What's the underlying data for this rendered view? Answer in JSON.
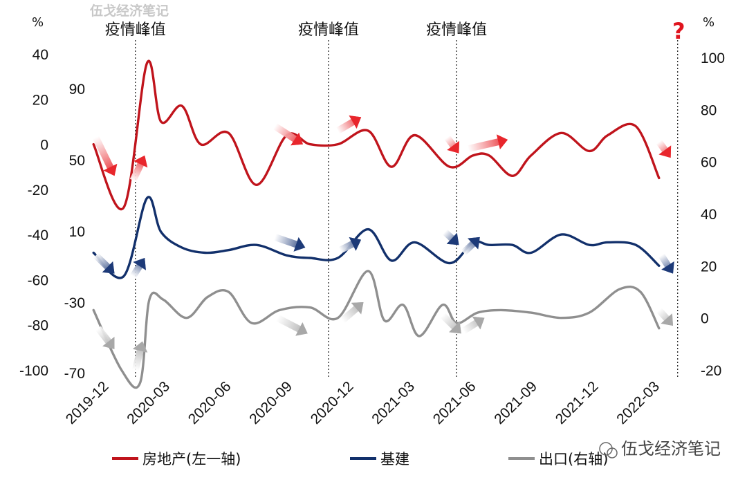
{
  "chart_data": {
    "type": "line",
    "watermark_top": "伍戈经济笔记",
    "watermark_bottom": "伍戈经济笔记",
    "question_mark": "?",
    "left_unit": "%",
    "right_unit": "%",
    "peak_label": "疫情峰值",
    "y_left_ticks": [
      "40",
      "20",
      "0",
      "-20",
      "-40",
      "-60",
      "-80",
      "-100"
    ],
    "y_inner_ticks": [
      "90",
      "50",
      "10",
      "-30",
      "-70"
    ],
    "y_right_ticks": [
      "100",
      "80",
      "60",
      "40",
      "20",
      "0",
      "-20"
    ],
    "x_ticks": [
      "2019-12",
      "2020-03",
      "2020-06",
      "2020-09",
      "2020-12",
      "2021-03",
      "2021-06",
      "2021-09",
      "2021-12",
      "2022-03"
    ],
    "colors": {
      "real_estate": "#c0141c",
      "infrastructure": "#12306b",
      "exports": "#8f8f8f",
      "arrow_red": "#e8262c",
      "arrow_navy": "#1d3a78",
      "arrow_gray": "#a8a8a8"
    },
    "series": [
      {
        "key": "real_estate",
        "name": "房地产(左一轴)",
        "axis": "left",
        "x": [
          2019.92,
          2020.05,
          2020.15,
          2020.21,
          2020.3,
          2020.38,
          2020.5,
          2020.62,
          2020.75,
          2020.85,
          2020.97,
          2021.1,
          2021.2,
          2021.3,
          2021.45,
          2021.55,
          2021.62,
          2021.72,
          2021.8,
          2021.93,
          2022.05,
          2022.13,
          2022.25,
          2022.35
        ],
        "values": [
          0,
          -28,
          36,
          10,
          17,
          0,
          5,
          -18,
          4,
          0,
          0,
          6,
          -10,
          4,
          -10,
          -5,
          -5,
          -14,
          -5,
          5,
          -3,
          4,
          8,
          -15
        ]
      },
      {
        "key": "infrastructure",
        "name": "基建",
        "axis": "right",
        "x": [
          2019.92,
          2020.05,
          2020.15,
          2020.21,
          2020.3,
          2020.4,
          2020.5,
          2020.62,
          2020.75,
          2020.85,
          2020.97,
          2021.1,
          2021.2,
          2021.3,
          2021.45,
          2021.55,
          2021.62,
          2021.72,
          2021.8,
          2021.93,
          2022.05,
          2022.13,
          2022.25,
          2022.35
        ],
        "values": [
          25,
          16,
          46,
          33,
          27,
          25,
          26,
          28,
          24,
          23,
          23,
          34,
          22,
          29,
          21,
          29,
          28,
          28,
          25,
          32,
          28,
          29,
          28,
          20
        ]
      },
      {
        "key": "exports",
        "name": "出口(右轴)",
        "axis": "right",
        "x": [
          2019.92,
          2020.04,
          2020.12,
          2020.16,
          2020.22,
          2020.32,
          2020.41,
          2020.5,
          2020.6,
          2020.72,
          2020.85,
          2020.97,
          2021.1,
          2021.17,
          2021.25,
          2021.32,
          2021.42,
          2021.48,
          2021.57,
          2021.67,
          2021.8,
          2021.93,
          2022.05,
          2022.18,
          2022.27,
          2022.35
        ],
        "values": [
          3,
          -20,
          -25,
          7,
          7,
          0,
          8,
          10,
          -2,
          3,
          4,
          0,
          18,
          -1,
          5,
          -7,
          5,
          -2,
          2,
          3,
          2,
          0,
          2,
          11,
          10,
          -4
        ]
      }
    ],
    "peak_x": [
      2020.1,
      2020.93,
      2021.48
    ],
    "plot_end_x": 2022.43,
    "xlim": [
      2019.86,
      2022.52
    ],
    "ylim_left": [
      -100,
      40
    ],
    "ylim_right": [
      -20,
      100
    ],
    "arrows": [
      {
        "color": "red",
        "x1": 2019.93,
        "y1": 3,
        "x2": 2020.01,
        "y2": -14
      },
      {
        "color": "red",
        "x1": 2020.09,
        "y1": -16,
        "x2": 2020.14,
        "y2": -5
      },
      {
        "color": "red",
        "x1": 2020.7,
        "y1": 8,
        "x2": 2020.82,
        "y2": 0
      },
      {
        "color": "red",
        "x1": 2020.97,
        "y1": 6,
        "x2": 2021.07,
        "y2": 12
      },
      {
        "color": "red",
        "x1": 2021.44,
        "y1": 3,
        "x2": 2021.49,
        "y2": -4
      },
      {
        "color": "red",
        "x1": 2021.53,
        "y1": -2,
        "x2": 2021.7,
        "y2": 2
      },
      {
        "color": "red",
        "x1": 2022.35,
        "y1": 1,
        "x2": 2022.4,
        "y2": -6
      },
      {
        "color": "navy",
        "x1": 2019.93,
        "y1": 24,
        "x2": 2020.01,
        "y2": 17
      },
      {
        "color": "navy",
        "x1": 2020.09,
        "y1": 16,
        "x2": 2020.14,
        "y2": 23
      },
      {
        "color": "navy",
        "x1": 2020.7,
        "y1": 31,
        "x2": 2020.83,
        "y2": 27
      },
      {
        "color": "navy",
        "x1": 2020.98,
        "y1": 26,
        "x2": 2021.07,
        "y2": 30
      },
      {
        "color": "navy",
        "x1": 2021.43,
        "y1": 33,
        "x2": 2021.49,
        "y2": 28
      },
      {
        "color": "navy",
        "x1": 2021.51,
        "y1": 25,
        "x2": 2021.58,
        "y2": 31
      },
      {
        "color": "navy",
        "x1": 2022.36,
        "y1": 24,
        "x2": 2022.41,
        "y2": 17
      },
      {
        "color": "gray",
        "x1": 2019.94,
        "y1": -4,
        "x2": 2020.01,
        "y2": -12
      },
      {
        "color": "gray",
        "x1": 2020.1,
        "y1": -20,
        "x2": 2020.13,
        "y2": -9
      },
      {
        "color": "gray",
        "x1": 2020.71,
        "y1": 0,
        "x2": 2020.84,
        "y2": -6
      },
      {
        "color": "gray",
        "x1": 2020.99,
        "y1": -1,
        "x2": 2021.08,
        "y2": 6
      },
      {
        "color": "gray",
        "x1": 2021.42,
        "y1": 1,
        "x2": 2021.5,
        "y2": -6
      },
      {
        "color": "gray",
        "x1": 2021.51,
        "y1": -5,
        "x2": 2021.6,
        "y2": 0
      },
      {
        "color": "gray",
        "x1": 2022.35,
        "y1": 3,
        "x2": 2022.41,
        "y2": -3
      }
    ],
    "grid": false,
    "legend_position": "bottom"
  },
  "legend": [
    {
      "label": "房地产(左一轴)",
      "color": "#c0141c"
    },
    {
      "label": "基建",
      "color": "#12306b"
    },
    {
      "label": "出口(右轴)",
      "color": "#8f8f8f"
    }
  ]
}
